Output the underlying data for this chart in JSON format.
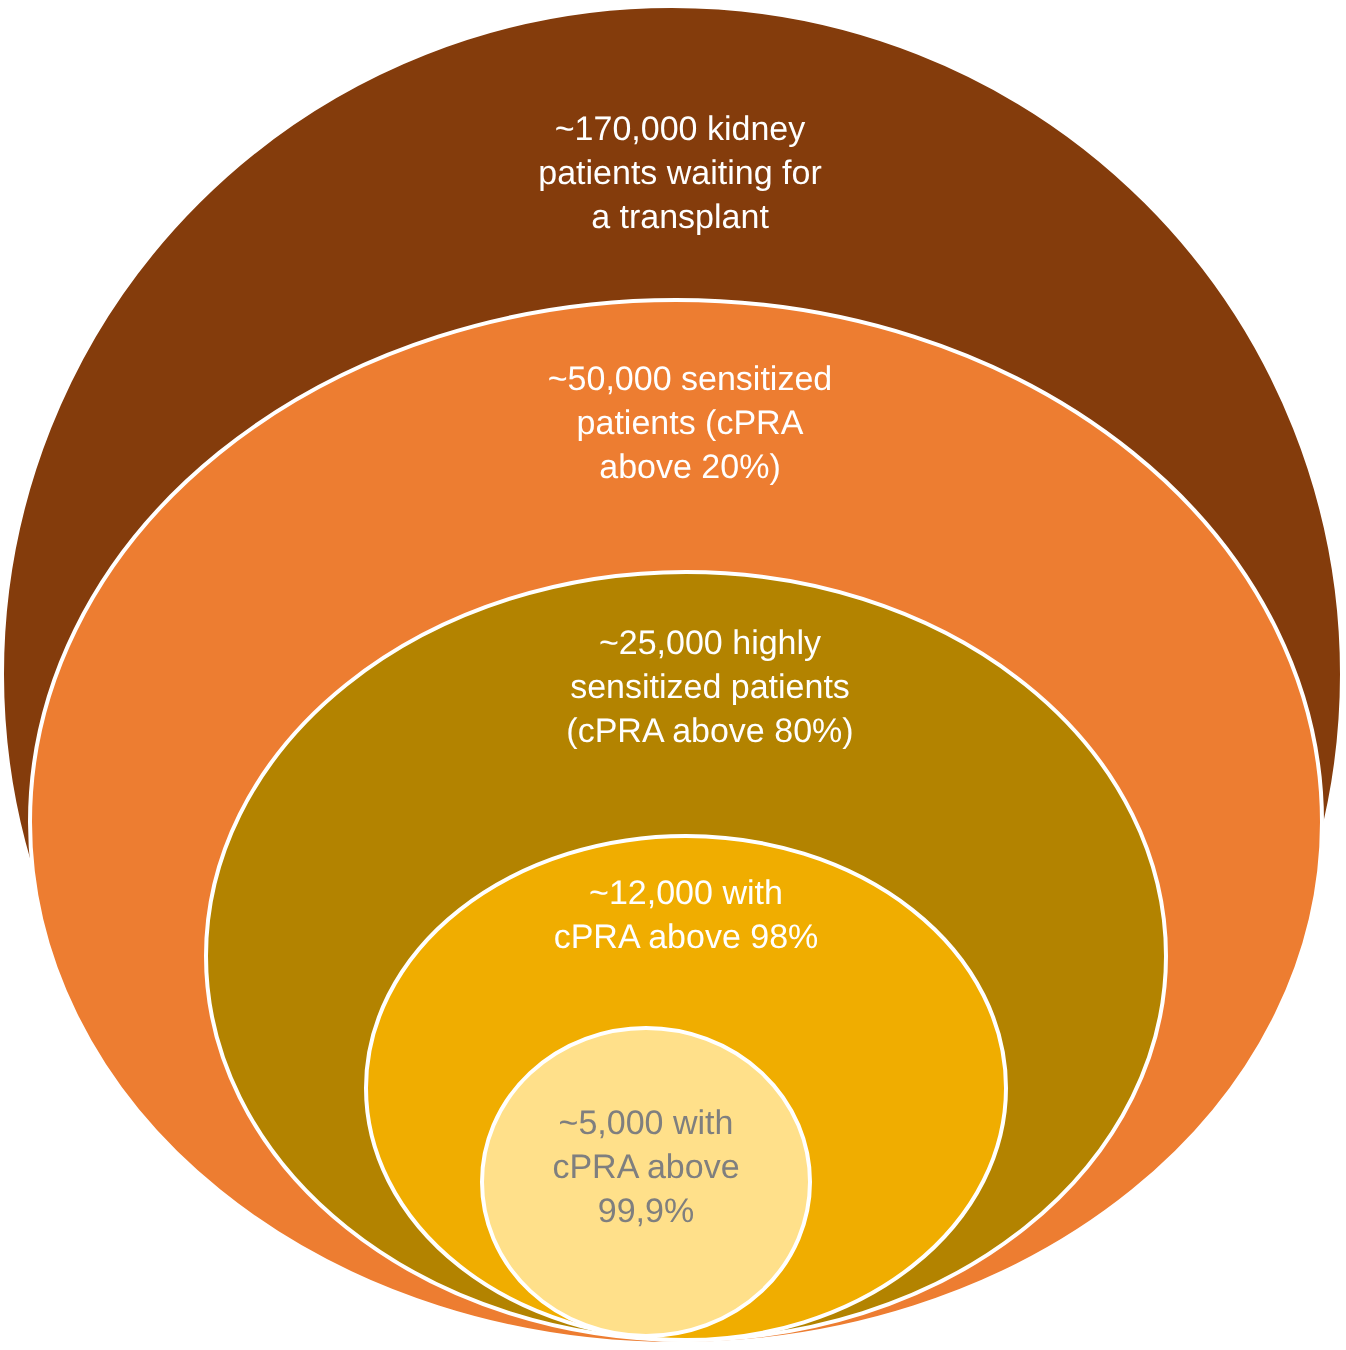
{
  "chart_data": {
    "type": "other",
    "categories": [
      "kidney\npatients waiting for\na transplant",
      "sensitized\npatients (cPRA\nabove 20%)",
      "highly\nsensitized patients\n(cPRA above 80%)",
      "with\ncPRA above 98%",
      "with\ncPRA above\n99,9%"
    ],
    "values": [
      170000,
      50000,
      25000,
      12000,
      5000
    ],
    "value_labels": [
      "~170,000",
      "~50,000",
      "~25,000",
      "~12,000",
      "~5,000"
    ],
    "colors": [
      "#843c0c",
      "#ed7d31",
      "#b38300",
      "#f0ad00",
      "#ffe08a"
    ]
  }
}
